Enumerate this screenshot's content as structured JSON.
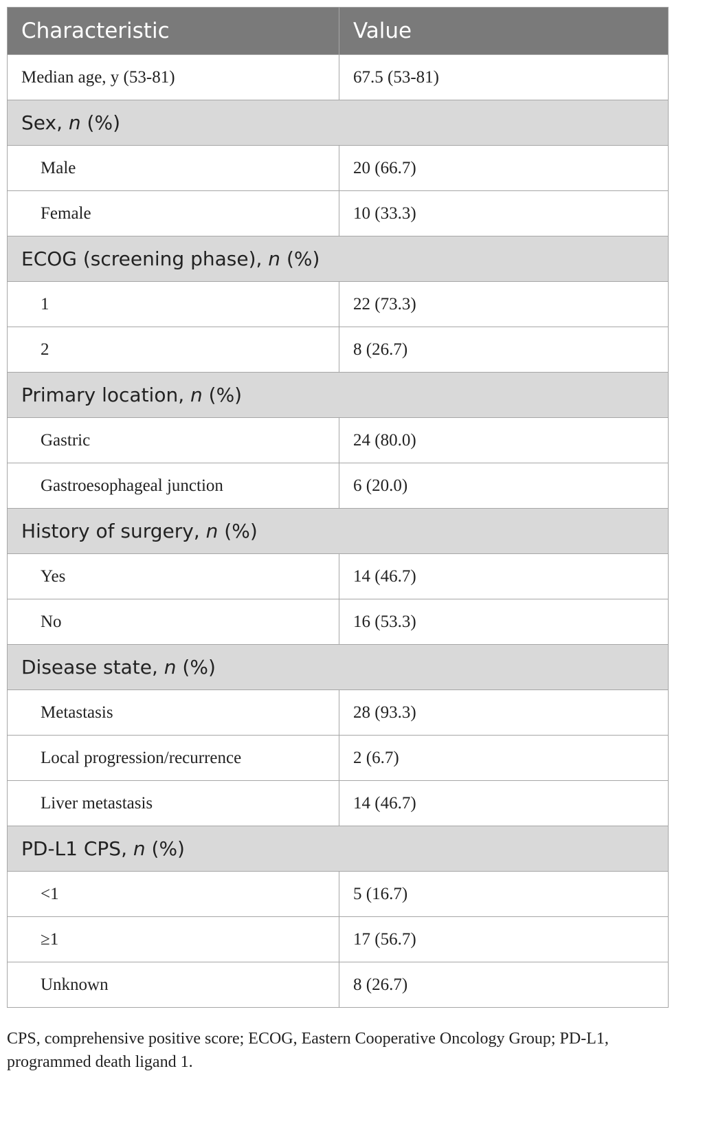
{
  "header": {
    "characteristic": "Characteristic",
    "value": "Value"
  },
  "top_row": {
    "label": "Median age, y (53-81)",
    "value": "67.5 (53-81)"
  },
  "sections": [
    {
      "title": "Sex, ",
      "title_italic": "n",
      "title_suffix": " (%)",
      "rows": [
        {
          "label": "Male",
          "value": "20 (66.7)"
        },
        {
          "label": "Female",
          "value": "10 (33.3)"
        }
      ]
    },
    {
      "title": "ECOG (screening phase), ",
      "title_italic": "n",
      "title_suffix": " (%)",
      "rows": [
        {
          "label": "1",
          "value": "22 (73.3)"
        },
        {
          "label": "2",
          "value": "8 (26.7)"
        }
      ]
    },
    {
      "title": "Primary location, ",
      "title_italic": "n",
      "title_suffix": " (%)",
      "rows": [
        {
          "label": "Gastric",
          "value": "24 (80.0)"
        },
        {
          "label": "Gastroesophageal junction",
          "value": "6 (20.0)"
        }
      ]
    },
    {
      "title": "History of surgery, ",
      "title_italic": "n",
      "title_suffix": " (%)",
      "rows": [
        {
          "label": "Yes",
          "value": "14 (46.7)"
        },
        {
          "label": "No",
          "value": "16 (53.3)"
        }
      ]
    },
    {
      "title": "Disease state, ",
      "title_italic": "n",
      "title_suffix": " (%)",
      "rows": [
        {
          "label": "Metastasis",
          "value": "28 (93.3)"
        },
        {
          "label": "Local progression/recurrence",
          "value": "2 (6.7)"
        },
        {
          "label": "Liver metastasis",
          "value": "14 (46.7)"
        }
      ]
    },
    {
      "title": "PD-L1 CPS, ",
      "title_italic": "n",
      "title_suffix": " (%)",
      "rows": [
        {
          "label": "<1",
          "value": "5 (16.7)"
        },
        {
          "label": "≥1",
          "value": "17 (56.7)"
        },
        {
          "label": "Unknown",
          "value": "8 (26.7)"
        }
      ]
    }
  ],
  "footnote": "CPS, comprehensive positive score; ECOG, Eastern Cooperative Oncology Group; PD-L1, programmed death ligand 1."
}
